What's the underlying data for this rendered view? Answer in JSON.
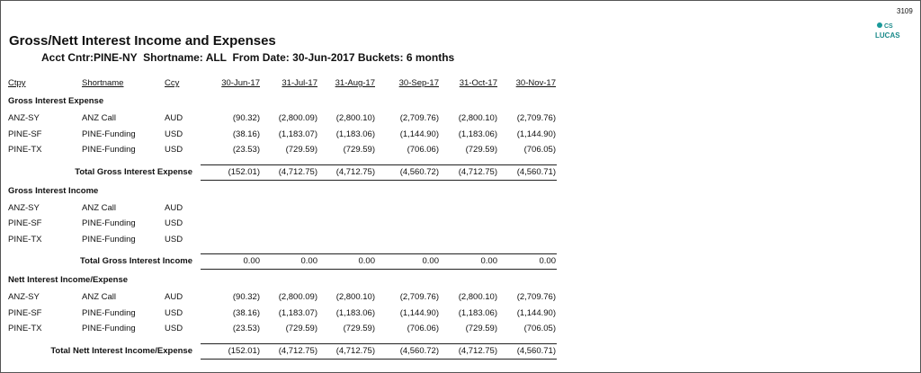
{
  "header": {
    "page_number": "3109",
    "logo": {
      "top": "CS",
      "bottom": "LUCAS"
    },
    "title": "Gross/Nett Interest Income and Expenses",
    "subtitle": "Acct Cntr:PINE-NY  Shortname: ALL  From Date: 30-Jun-2017 Buckets: 6 months"
  },
  "table": {
    "columns": [
      "Ctpy",
      "Shortname",
      "Ccy",
      "30-Jun-17",
      "31-Jul-17",
      "31-Aug-17",
      "30-Sep-17",
      "31-Oct-17",
      "30-Nov-17"
    ],
    "sections": [
      {
        "title": "Gross Interest Expense",
        "rows": [
          [
            "ANZ-SY",
            "ANZ Call",
            "AUD",
            "(90.32)",
            "(2,800.09)",
            "(2,800.10)",
            "(2,709.76)",
            "(2,800.10)",
            "(2,709.76)"
          ],
          [
            "PINE-SF",
            "PINE-Funding",
            "USD",
            "(38.16)",
            "(1,183.07)",
            "(1,183.06)",
            "(1,144.90)",
            "(1,183.06)",
            "(1,144.90)"
          ],
          [
            "PINE-TX",
            "PINE-Funding",
            "USD",
            "(23.53)",
            "(729.59)",
            "(729.59)",
            "(706.06)",
            "(729.59)",
            "(706.05)"
          ]
        ],
        "total": {
          "label": "Total Gross Interest Expense",
          "values": [
            "(152.01)",
            "(4,712.75)",
            "(4,712.75)",
            "(4,560.72)",
            "(4,712.75)",
            "(4,560.71)"
          ]
        }
      },
      {
        "title": "Gross Interest Income",
        "rows": [
          [
            "ANZ-SY",
            "ANZ Call",
            "AUD"
          ],
          [
            "PINE-SF",
            "PINE-Funding",
            "USD"
          ],
          [
            "PINE-TX",
            "PINE-Funding",
            "USD"
          ]
        ],
        "total": {
          "label": "Total Gross Interest Income",
          "values": [
            "0.00",
            "0.00",
            "0.00",
            "0.00",
            "0.00",
            "0.00"
          ]
        }
      },
      {
        "title": "Nett Interest Income/Expense",
        "rows": [
          [
            "ANZ-SY",
            "ANZ Call",
            "AUD",
            "(90.32)",
            "(2,800.09)",
            "(2,800.10)",
            "(2,709.76)",
            "(2,800.10)",
            "(2,709.76)"
          ],
          [
            "PINE-SF",
            "PINE-Funding",
            "USD",
            "(38.16)",
            "(1,183.07)",
            "(1,183.06)",
            "(1,144.90)",
            "(1,183.06)",
            "(1,144.90)"
          ],
          [
            "PINE-TX",
            "PINE-Funding",
            "USD",
            "(23.53)",
            "(729.59)",
            "(729.59)",
            "(706.06)",
            "(729.59)",
            "(706.05)"
          ]
        ],
        "total": {
          "label": "Total Nett Interest Income/Expense",
          "values": [
            "(152.01)",
            "(4,712.75)",
            "(4,712.75)",
            "(4,560.72)",
            "(4,712.75)",
            "(4,560.71)"
          ]
        }
      }
    ]
  }
}
